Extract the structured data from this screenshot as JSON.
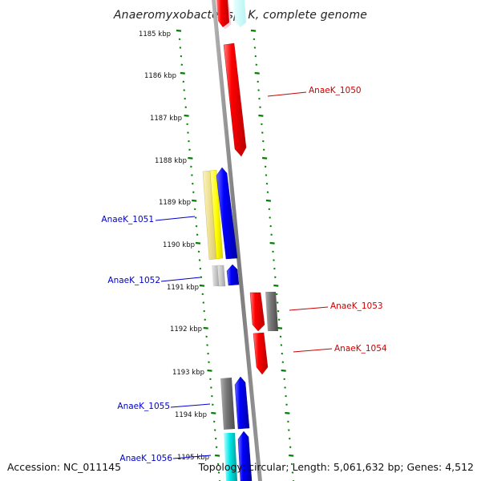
{
  "title": "Anaeromyxobacter sp. K, complete genome",
  "accession": "Accession: NC_011145",
  "topology": "Topology: circular; Length: 5,061,632 bp; Genes: 4,512",
  "ruler": {
    "ticks": [
      "1185 kbp",
      "1186 kbp",
      "1187 kbp",
      "1188 kbp",
      "1189 kbp",
      "1190 kbp",
      "1191 kbp",
      "1192 kbp",
      "1193 kbp",
      "1194 kbp",
      "1195 kbp"
    ]
  },
  "genes": {
    "forward": [
      {
        "label": "AnaeK_1050",
        "color": "#ff0000"
      },
      {
        "label": "AnaeK_1053",
        "color": "#ff0000"
      },
      {
        "label": "AnaeK_1054",
        "color": "#ff0000"
      }
    ],
    "reverse": [
      {
        "label": "AnaeK_1051",
        "color": "#0000cc"
      },
      {
        "label": "AnaeK_1052",
        "color": "#0000cc"
      },
      {
        "label": "AnaeK_1055",
        "color": "#0000cc"
      },
      {
        "label": "AnaeK_1056",
        "color": "#0000cc"
      }
    ]
  },
  "colors": {
    "tick": "#008000",
    "backbone": "#808080",
    "forward_label": "#cc0000",
    "reverse_label": "#0000cc",
    "cds_forward": "#ff0000",
    "cds_reverse": "#0000ff",
    "yellow_feature": "#ffff00",
    "cyan_feature": "#00e0e0",
    "gray_feature": "#777777"
  }
}
